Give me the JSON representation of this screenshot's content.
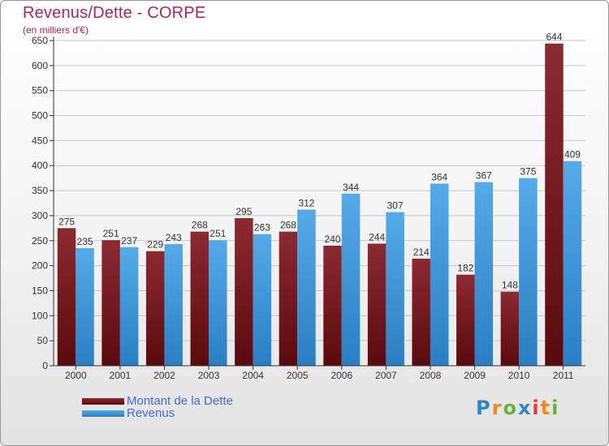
{
  "title": "Revenus/Dette - CORPE",
  "subtitle": "(en milliers d'€)",
  "legend": {
    "debt_label": "Montant de la Dette",
    "revenue_label": "Revenus"
  },
  "logo": {
    "letters": [
      "P",
      "r",
      "o",
      "x",
      "i",
      "t",
      "i"
    ],
    "colors": [
      "#2e86c8",
      "#f08a1c",
      "#6cb33e",
      "#2e86c8",
      "#e8392b",
      "#f08a1c",
      "#6cb33e"
    ]
  },
  "colors": {
    "debt": "#7b1419",
    "revenue": "#3d97db",
    "title": "#b0254e"
  },
  "chart_data": {
    "type": "bar",
    "categories": [
      "2000",
      "2001",
      "2002",
      "2003",
      "2004",
      "2005",
      "2006",
      "2007",
      "2008",
      "2009",
      "2010",
      "2011"
    ],
    "series": [
      {
        "name": "Montant de la Dette",
        "values": [
          275,
          251,
          229,
          268,
          295,
          268,
          240,
          244,
          214,
          182,
          148,
          644
        ]
      },
      {
        "name": "Revenus",
        "values": [
          235,
          237,
          243,
          251,
          263,
          312,
          344,
          307,
          364,
          367,
          375,
          409
        ]
      }
    ],
    "ylim": [
      0,
      650
    ],
    "yticks": [
      0,
      50,
      100,
      150,
      200,
      250,
      300,
      350,
      400,
      450,
      500,
      550,
      600,
      650
    ],
    "grid": true,
    "legend_position": "bottom-left"
  }
}
